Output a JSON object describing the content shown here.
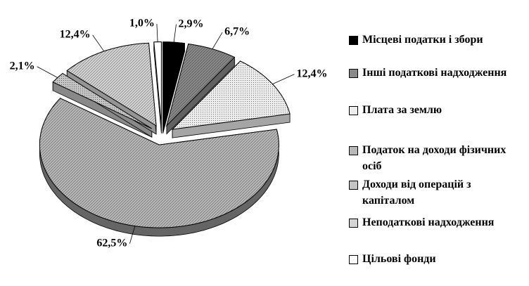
{
  "chart_data": {
    "type": "pie",
    "categories": [
      "Місцеві податки і збори",
      "Інші податкові надходження",
      "Плата за землю",
      "Податок на доходи фізичних осіб",
      "Доходи від операцій з капіталом",
      "Неподаткові надходження",
      "Цільові фонди"
    ],
    "values": [
      2.9,
      6.7,
      12.4,
      62.5,
      2.1,
      12.4,
      1.0
    ],
    "value_labels": [
      "2,9%",
      "6,7%",
      "12,4%",
      "62,5%",
      "2,1%",
      "12,4%",
      "1,0%"
    ],
    "colors": [
      "#000000",
      "#8a8a8a",
      "#ececec",
      "#b8b8b8",
      "#c4c4c4",
      "#d4d4d4",
      "#ffffff"
    ],
    "legend": "right"
  }
}
